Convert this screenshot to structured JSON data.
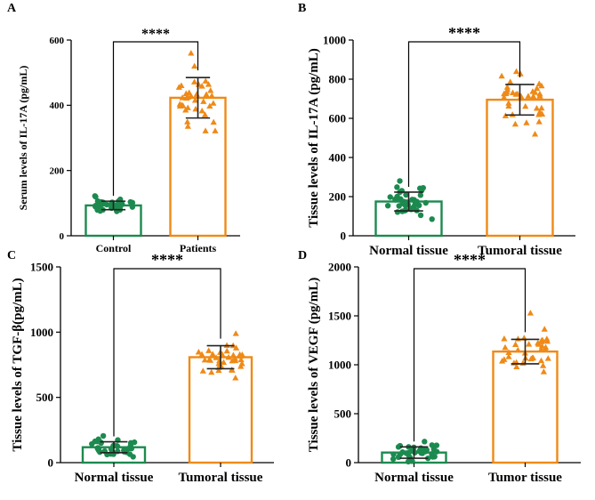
{
  "figure": {
    "colors": {
      "control": "#1c8a4f",
      "treatment": "#ef8a17",
      "axis": "#000000",
      "errorbar": "#222222"
    }
  },
  "chart_data": [
    {
      "panel_label": "A",
      "type": "bar",
      "ylabel": "Serum levels of IL-17A (pg/mL)",
      "ylim": [
        0,
        600
      ],
      "yticks": [
        0,
        200,
        400,
        600
      ],
      "categories": [
        "Control",
        "Patients"
      ],
      "values": [
        93,
        423
      ],
      "sd": [
        13,
        62
      ],
      "point_spread": [
        [
          75,
          122
        ],
        [
          322,
          560
        ]
      ],
      "significance": "****",
      "grid": false
    },
    {
      "panel_label": "B",
      "type": "bar",
      "ylabel": "Tissue levels of IL-17A (pg/mL)",
      "ylim": [
        0,
        1000
      ],
      "yticks": [
        0,
        200,
        400,
        600,
        800,
        1000
      ],
      "categories": [
        "Normal tissue",
        "Tumoral tissue"
      ],
      "values": [
        175,
        695
      ],
      "sd": [
        48,
        78
      ],
      "point_spread": [
        [
          85,
          280
        ],
        [
          520,
          840
        ]
      ],
      "significance": "****",
      "grid": false
    },
    {
      "panel_label": "C",
      "type": "bar",
      "ylabel": "Tissue levels of TGF-β(pg/mL)",
      "ylim": [
        0,
        1500
      ],
      "yticks": [
        0,
        500,
        1000,
        1500
      ],
      "categories": [
        "Normal tissue",
        "Tumoral tissue"
      ],
      "values": [
        118,
        808
      ],
      "sd": [
        42,
        88
      ],
      "point_spread": [
        [
          45,
          205
        ],
        [
          650,
          990
        ]
      ],
      "significance": "****",
      "grid": false
    },
    {
      "panel_label": "D",
      "type": "bar",
      "ylabel": "Tissue levels of VEGF (pg/mL)",
      "ylim": [
        0,
        2000
      ],
      "yticks": [
        0,
        500,
        1000,
        1500,
        2000
      ],
      "categories": [
        "Normal tissue",
        "Tumor tissue"
      ],
      "values": [
        103,
        1135
      ],
      "sd": [
        58,
        125
      ],
      "point_spread": [
        [
          10,
          215
        ],
        [
          930,
          1530
        ]
      ],
      "significance": "****",
      "grid": false
    }
  ]
}
